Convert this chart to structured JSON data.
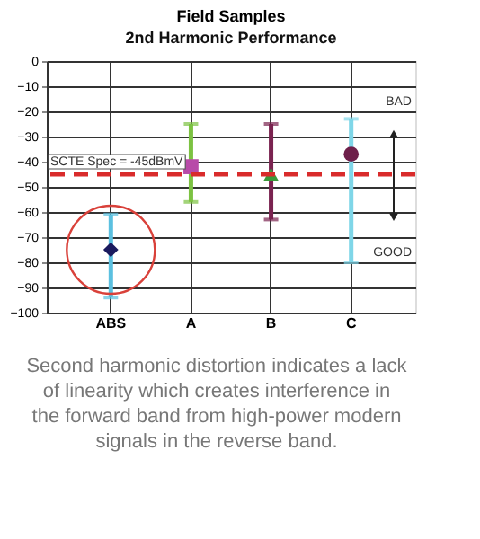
{
  "chart_data": {
    "type": "scatter",
    "title": "Field Samples",
    "subtitle": "2nd Harmonic Performance",
    "categories": [
      "ABS",
      "A",
      "B",
      "C"
    ],
    "series": [
      {
        "x": [
          "ABS"
        ],
        "values": [
          -75
        ],
        "errors": [
          [
            -94,
            -61
          ]
        ],
        "color": "#1a1a5e",
        "marker": "diamond"
      },
      {
        "x": [
          "A"
        ],
        "values": [
          -42
        ],
        "errors": [
          [
            -56,
            -25
          ]
        ],
        "color": "#b84aa8",
        "marker": "square"
      },
      {
        "x": [
          "B"
        ],
        "values": [
          -45
        ],
        "errors": [
          [
            -63,
            -25
          ]
        ],
        "color": "#3a9a3a",
        "marker": "triangle"
      },
      {
        "x": [
          "C"
        ],
        "values": [
          -37
        ],
        "errors": [
          [
            -80,
            -23
          ]
        ],
        "color": "#6e1f4a",
        "marker": "circle"
      }
    ],
    "ylim": [
      -100,
      0
    ],
    "yticks": [
      0,
      -10,
      -20,
      -30,
      -40,
      -50,
      -60,
      -70,
      -80,
      -90,
      -100
    ],
    "grid": true,
    "ref_lines": [
      {
        "axis": "y",
        "value": -45,
        "label": "SCTE Spec = -45dBmV",
        "color": "#d92b2b",
        "line_style": "dashed"
      }
    ],
    "annotations": [
      "BAD",
      "GOOD",
      "Second harmonic distortion indicates a lack of linearity which creates interference in the forward band from high-power modern signals in the reverse band."
    ]
  }
}
